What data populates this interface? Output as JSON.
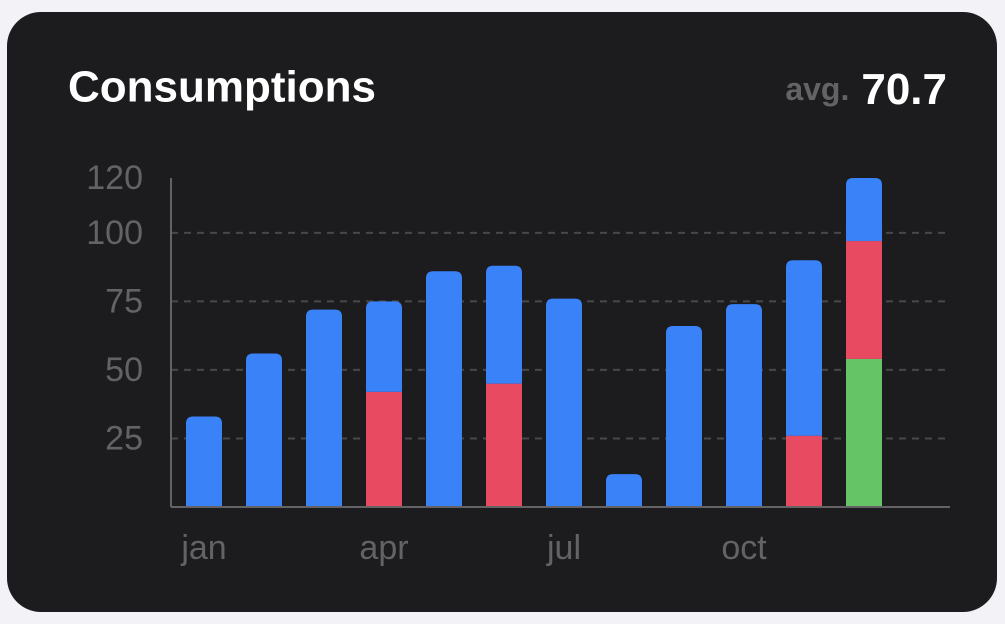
{
  "chart_data": {
    "type": "bar",
    "stacked": true,
    "title": "Consumptions",
    "avg_label": "avg.",
    "avg_value": 70.7,
    "categories": [
      "jan",
      null,
      null,
      "apr",
      null,
      null,
      "jul",
      null,
      null,
      "oct",
      null,
      null
    ],
    "series": [
      {
        "color": "#65c466",
        "values": [
          null,
          null,
          null,
          null,
          null,
          null,
          null,
          null,
          null,
          null,
          null,
          54
        ]
      },
      {
        "color": "#e84a62",
        "values": [
          null,
          null,
          null,
          42,
          null,
          45,
          null,
          null,
          null,
          null,
          26,
          43
        ]
      },
      {
        "color": "#3a82f7",
        "values": [
          33,
          56,
          72,
          33,
          86,
          43,
          76,
          12,
          66,
          74,
          64,
          23
        ]
      }
    ],
    "ylim": [
      0,
      120
    ],
    "yticks": [
      25,
      50,
      75,
      100,
      120
    ],
    "grid": true
  }
}
